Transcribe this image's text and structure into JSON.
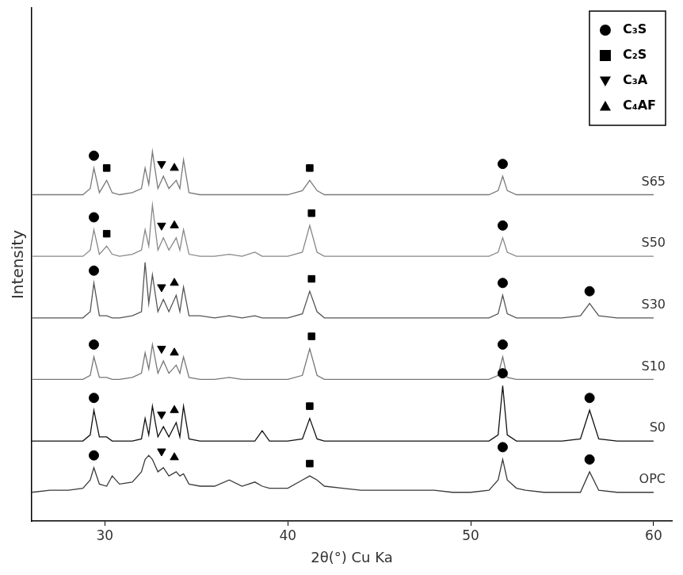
{
  "chart_data": {
    "type": "line",
    "x_label": "2θ(°) Cu Ka",
    "y_label": "Intensity",
    "x": [
      26,
      27,
      28,
      28.8,
      29.2,
      29.4,
      29.7,
      30.1,
      30.4,
      30.8,
      31.5,
      32,
      32.2,
      32.4,
      32.6,
      32.9,
      33.2,
      33.5,
      33.9,
      34.1,
      34.3,
      34.6,
      35.2,
      36,
      36.8,
      37.5,
      38.2,
      38.6,
      39,
      40,
      40.8,
      41.2,
      41.6,
      42,
      43,
      44,
      45,
      46,
      47,
      48,
      49,
      50,
      51,
      51.5,
      51.75,
      52,
      52.5,
      53,
      54,
      55,
      56,
      56.5,
      57,
      58,
      59,
      60
    ],
    "xlim": [
      26,
      61
    ],
    "xticks": [
      30,
      40,
      50,
      60
    ],
    "ylim": [
      0,
      125
    ],
    "tick_labels": "x",
    "grid": false,
    "legend": "upper right",
    "series": [
      {
        "name": "OPC",
        "color": "#3a3a3a",
        "values": [
          7,
          7.5,
          7.5,
          8,
          10,
          13,
          9,
          8.5,
          11,
          9,
          9.5,
          12,
          15,
          16,
          15,
          12,
          13,
          11,
          12,
          11,
          11.5,
          9,
          8.5,
          8.5,
          10,
          8.5,
          9.5,
          8.5,
          8,
          8,
          10,
          11,
          10,
          8.5,
          8,
          7.5,
          7.5,
          7.5,
          7.5,
          7.5,
          7,
          7,
          7.5,
          10,
          15,
          10,
          8,
          7.5,
          7,
          7,
          7,
          12,
          7.5,
          7,
          7,
          7
        ]
      },
      {
        "name": "S0",
        "color": "#111111",
        "values": [
          19.5,
          19.5,
          19.5,
          19.5,
          21,
          27,
          20.5,
          20.5,
          19.5,
          19.5,
          19.5,
          20,
          25,
          21,
          28,
          20.5,
          23,
          20.5,
          24,
          20.5,
          28,
          20,
          19.5,
          19.5,
          19.5,
          19.5,
          19.5,
          22,
          19.5,
          19.5,
          20,
          25,
          20,
          19.5,
          19.5,
          19.5,
          19.5,
          19.5,
          19.5,
          19.5,
          19.5,
          19.5,
          19.5,
          21,
          33,
          21,
          19.5,
          19.5,
          19.5,
          19.5,
          20,
          27,
          20,
          19.5,
          19.5,
          19.5
        ]
      },
      {
        "name": "S10",
        "color": "#777777",
        "values": [
          34.5,
          34.5,
          34.5,
          34.5,
          35.5,
          40,
          35,
          35,
          34.5,
          34.5,
          35,
          36,
          41,
          37,
          43,
          36,
          39,
          36,
          38,
          36,
          40,
          35,
          34.5,
          34.5,
          35,
          34.5,
          34.5,
          34.5,
          34.5,
          34.5,
          35.5,
          42,
          35.5,
          34.5,
          34.5,
          34.5,
          34.5,
          34.5,
          34.5,
          34.5,
          34.5,
          34.5,
          34.5,
          35.5,
          40,
          35,
          34.5,
          34.5,
          34.5,
          34.5,
          34.5,
          34.5,
          34.5,
          34.5,
          34.5,
          34.5
        ]
      },
      {
        "name": "S30",
        "color": "#555555",
        "values": [
          49.5,
          49.5,
          49.5,
          49.5,
          51,
          58,
          50,
          50,
          49.5,
          49.5,
          50,
          51,
          63,
          53,
          60,
          51,
          54,
          51,
          55,
          51,
          57,
          50,
          50,
          49.5,
          50,
          49.5,
          50,
          49.5,
          49.5,
          49.5,
          50.5,
          56,
          51,
          49.5,
          49.5,
          49.5,
          49.5,
          49.5,
          49.5,
          49.5,
          49.5,
          49.5,
          49.5,
          50.5,
          55,
          50.5,
          49.5,
          49.5,
          49.5,
          49.5,
          50,
          53,
          50,
          49.5,
          49.5,
          49.5
        ]
      },
      {
        "name": "S50",
        "color": "#888888",
        "values": [
          64.5,
          64.5,
          64.5,
          64.5,
          66,
          71,
          65,
          67,
          65,
          64.5,
          65,
          66,
          71,
          67,
          77,
          66,
          69,
          66,
          69,
          66,
          71,
          65,
          64.5,
          64.5,
          65,
          64.5,
          65.5,
          64.5,
          64.5,
          64.5,
          65.5,
          72,
          65.5,
          64.5,
          64.5,
          64.5,
          64.5,
          64.5,
          64.5,
          64.5,
          64.5,
          64.5,
          64.5,
          65.5,
          69,
          65.5,
          64.5,
          64.5,
          64.5,
          64.5,
          64.5,
          64.5,
          64.5,
          64.5,
          64.5,
          64.5
        ]
      },
      {
        "name": "S65",
        "color": "#7a7a7a",
        "values": [
          79.5,
          79.5,
          79.5,
          79.5,
          81,
          86,
          80,
          83,
          80,
          79.5,
          80,
          81,
          86,
          82,
          90,
          81,
          84,
          81,
          83,
          81,
          88,
          80,
          79.5,
          79.5,
          79.5,
          79.5,
          79.5,
          79.5,
          79.5,
          79.5,
          80.5,
          83,
          80.5,
          79.5,
          79.5,
          79.5,
          79.5,
          79.5,
          79.5,
          79.5,
          79.5,
          79.5,
          79.5,
          80.5,
          84,
          80.5,
          79.5,
          79.5,
          79.5,
          79.5,
          79.5,
          79.5,
          79.5,
          79.5,
          79.5,
          79.5
        ]
      },
      {
        "name": "C₃S",
        "type": "scatter",
        "marker": "circle",
        "color": "#000000",
        "x": [
          29.4,
          51.75,
          56.5,
          29.4,
          51.75,
          56.5,
          29.4,
          51.75,
          29.4,
          51.75,
          56.5,
          29.4,
          51.75,
          29.4,
          51.75
        ],
        "values": [
          16,
          18,
          15,
          30,
          36,
          30,
          43,
          43,
          61,
          58,
          56,
          74,
          72,
          89,
          87
        ]
      },
      {
        "name": "C₂S",
        "type": "scatter",
        "marker": "square",
        "color": "#000000",
        "x": [
          41.2,
          41.2,
          41.3,
          41.3,
          41.3,
          41.2,
          30.1,
          30.1
        ],
        "values": [
          14,
          28,
          45,
          59,
          75,
          86,
          70,
          86
        ]
      },
      {
        "name": "C₃A",
        "type": "scatter",
        "marker": "triangle-down",
        "color": "#000000",
        "x": [
          33.1,
          33.1,
          33.1,
          33.1,
          33.1,
          33.1
        ],
        "values": [
          17,
          26,
          42,
          57,
          72,
          87
        ]
      },
      {
        "name": "C₄AF",
        "type": "scatter",
        "marker": "triangle",
        "color": "#000000",
        "x": [
          33.8,
          33.8,
          33.8,
          33.8,
          33.8,
          33.8
        ],
        "values": [
          15.5,
          27,
          41,
          58,
          72,
          86
        ]
      }
    ]
  }
}
